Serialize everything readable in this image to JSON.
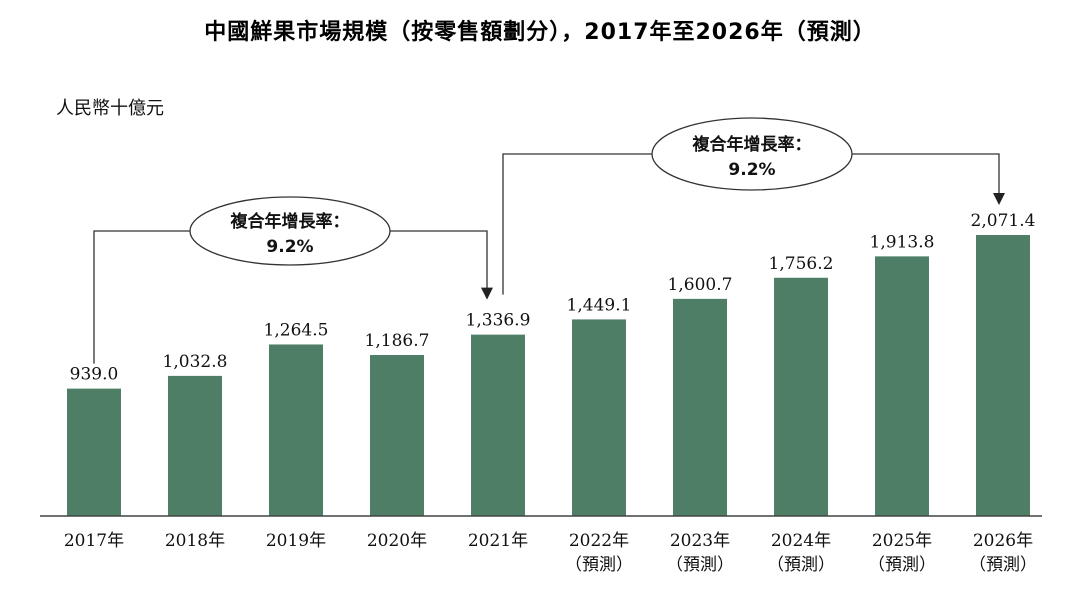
{
  "title": "中國鮮果市場規模（按零售額劃分），2017年至2026年（預測）",
  "unit_label": "人民幣十億元",
  "chart_data": {
    "type": "bar",
    "title": "中國鮮果市場規模（按零售額劃分），2017年至2026年（預測）",
    "ylabel": "人民幣十億元",
    "xlabel": "",
    "ylim": [
      0,
      2300
    ],
    "grid": false,
    "legend": "none",
    "bar_color": "#4e7f66",
    "categories": [
      "2017年",
      "2018年",
      "2019年",
      "2020年",
      "2021年",
      "2022年",
      "2023年",
      "2024年",
      "2025年",
      "2026年"
    ],
    "category_sublabels": [
      "",
      "",
      "",
      "",
      "",
      "（預測）",
      "（預測）",
      "（預測）",
      "（預測）",
      "（預測）"
    ],
    "values": [
      939.0,
      1032.8,
      1264.5,
      1186.7,
      1336.9,
      1449.1,
      1600.7,
      1756.2,
      1913.8,
      2071.4
    ],
    "value_labels": [
      "939.0",
      "1,032.8",
      "1,264.5",
      "1,186.7",
      "1,336.9",
      "1,449.1",
      "1,600.7",
      "1,756.2",
      "1,913.8",
      "2,071.4"
    ],
    "annotations": [
      {
        "from": "2017年",
        "to": "2021年",
        "line1": "複合年增長率：",
        "line2": "9.2%"
      },
      {
        "from": "2021年",
        "to": "2026年",
        "line1": "複合年增長率：",
        "line2": "9.2%"
      }
    ]
  }
}
